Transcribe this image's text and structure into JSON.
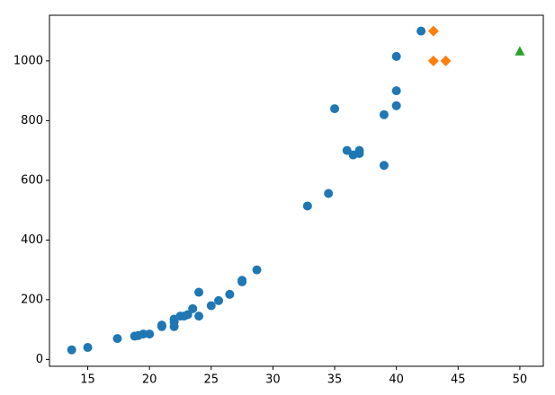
{
  "chart_data": {
    "type": "scatter",
    "series": [
      {
        "color": "#1f77b4",
        "marker": "circle",
        "x": [
          13.7,
          15,
          17.4,
          18.8,
          19.1,
          19.5,
          20,
          21,
          21,
          22,
          22,
          22,
          22.5,
          22.8,
          23.1,
          23.5,
          24,
          24,
          25,
          25.6,
          26.5,
          27.5,
          27.5,
          28.7,
          32.8,
          34.5,
          35,
          36,
          36.5,
          37,
          37,
          39,
          39,
          40,
          40,
          40,
          42
        ],
        "values": [
          32,
          40,
          70,
          78,
          80,
          85,
          85,
          110,
          115,
          110,
          125,
          135,
          145,
          145,
          150,
          170,
          225,
          145,
          180,
          197,
          218,
          260,
          265,
          300,
          514,
          556,
          840,
          700,
          685,
          690,
          700,
          820,
          650,
          850,
          900,
          1015,
          1100
        ]
      },
      {
        "color": "#ff7f0e",
        "marker": "diamond",
        "x": [
          43,
          43,
          44
        ],
        "values": [
          1100,
          1000,
          1000
        ]
      },
      {
        "color": "#2ca02c",
        "marker": "triangle",
        "x": [
          50
        ],
        "values": [
          1032
        ]
      }
    ],
    "xlim": [
      11.9,
      51.9
    ],
    "xticks": [
      15,
      20,
      25,
      30,
      35,
      40,
      45,
      50
    ],
    "ylim": [
      -23,
      1153
    ],
    "yticks": [
      0,
      200,
      400,
      600,
      800,
      1000
    ]
  }
}
